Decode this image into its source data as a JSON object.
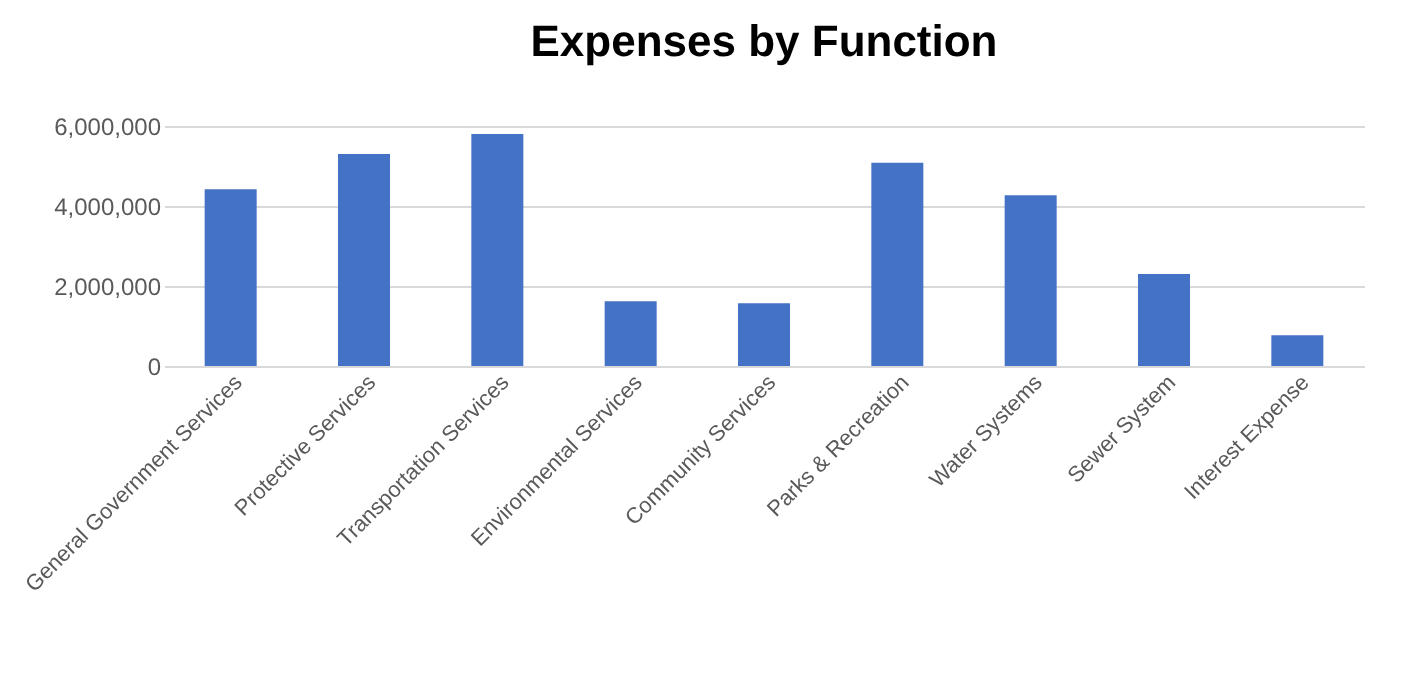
{
  "chart_data": {
    "type": "bar",
    "title": "Expenses by Function",
    "categories": [
      "General Government Services",
      "Protective Services",
      "Transportation Services",
      "Environmental Services",
      "Community Services",
      "Parks & Recreation",
      "Water Systems",
      "Sewer System",
      "Interest Expense"
    ],
    "values": [
      4420000,
      5300000,
      5800000,
      1620000,
      1570000,
      5080000,
      4270000,
      2300000,
      770000
    ],
    "color": "#4472c4",
    "ylim": [
      0,
      6000000
    ],
    "yticks": [
      {
        "value": 0,
        "label": "0"
      },
      {
        "value": 2000000,
        "label": "2,000,000"
      },
      {
        "value": 4000000,
        "label": "4,000,000"
      },
      {
        "value": 6000000,
        "label": "6,000,000"
      }
    ],
    "grid": true
  }
}
